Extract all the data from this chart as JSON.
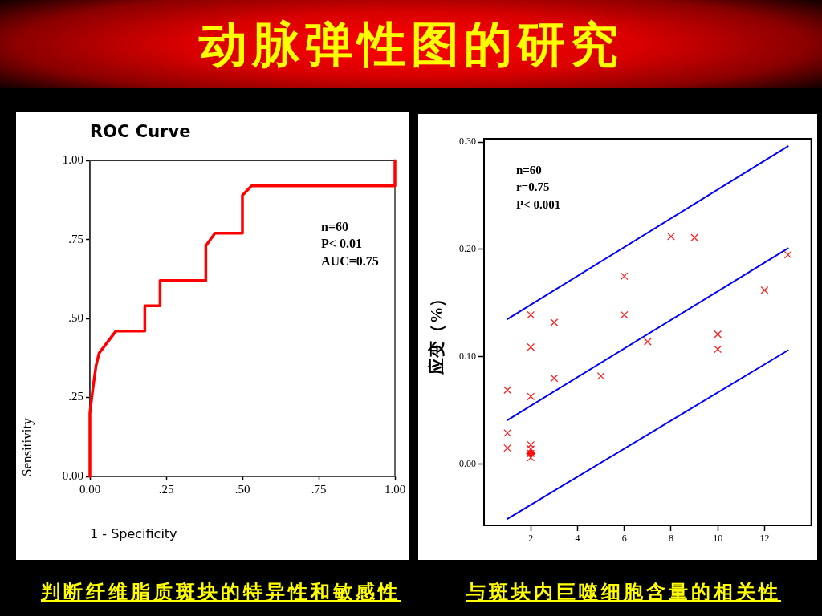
{
  "chart_data": [
    {
      "type": "other",
      "title": "动脉弹性图的研究"
    },
    {
      "type": "line",
      "title": "ROC Curve",
      "xlabel": "1 - Specificity",
      "ylabel": "Sensitivity",
      "x": [
        0,
        0,
        0.01,
        0.02,
        0.03,
        0.085,
        0.18,
        0.18,
        0.23,
        0.23,
        0.38,
        0.38,
        0.41,
        0.5,
        0.5,
        0.53,
        1,
        1
      ],
      "values": [
        0,
        0.2,
        0.28,
        0.35,
        0.39,
        0.46,
        0.46,
        0.54,
        0.54,
        0.62,
        0.62,
        0.73,
        0.77,
        0.77,
        0.89,
        0.92,
        0.92,
        1
      ],
      "color": "#ff0000",
      "marker": "none",
      "xlim": [
        0,
        1
      ],
      "ylim": [
        0,
        1
      ],
      "xticks": [
        {
          "value": 0,
          "label": "0.00"
        },
        {
          "value": 0.25,
          "label": ".25"
        },
        {
          "value": 0.5,
          "label": ".50"
        },
        {
          "value": 0.75,
          "label": ".75"
        },
        {
          "value": 1,
          "label": "1.00"
        }
      ],
      "yticks": [
        {
          "value": 0,
          "label": "0.00"
        },
        {
          "value": 0.25,
          "label": ".25"
        },
        {
          "value": 0.5,
          "label": ".50"
        },
        {
          "value": 0.75,
          "label": ".75"
        },
        {
          "value": 1,
          "label": "1.00"
        }
      ],
      "annotations": [
        "n=60",
        "P< 0.01",
        "AUC=0.75",
        "判断纤维脂质斑块的特异性和敏感性"
      ]
    },
    {
      "type": "scatter",
      "ylabel": "应变（%）",
      "xlim": [
        0,
        14
      ],
      "ylim": [
        -0.057,
        0.303
      ],
      "xticks": [
        2,
        4,
        6,
        8,
        10,
        12
      ],
      "yticks": [
        {
          "value": 0,
          "label": "0.00"
        },
        {
          "value": 0.1,
          "label": "0.10"
        },
        {
          "value": 0.2,
          "label": "0.20"
        },
        {
          "value": 0.3,
          "label": "0.30"
        }
      ],
      "series": [
        {
          "type": "scatter",
          "color": "#ff2020",
          "marker": "cross",
          "x": [
            1,
            1,
            1,
            2,
            2,
            2,
            2,
            2,
            2,
            2,
            3,
            3,
            5,
            6,
            6,
            7,
            8,
            9,
            10,
            10,
            12,
            13
          ],
          "values": [
            0.069,
            0.029,
            0.015,
            0.139,
            0.109,
            0.063,
            0.018,
            0.014,
            0.01,
            0.006,
            0.132,
            0.08,
            0.082,
            0.175,
            0.139,
            0.114,
            0.212,
            0.211,
            0.121,
            0.107,
            0.162,
            0.195
          ]
        },
        {
          "type": "scatter",
          "color": "#ff0000",
          "marker": "diamond",
          "x": [
            2
          ],
          "values": [
            0.01
          ]
        },
        {
          "type": "line",
          "color": "#0000ff",
          "marker": "none",
          "x": [
            1,
            13
          ],
          "values": [
            0.135,
            0.296
          ]
        },
        {
          "type": "line",
          "color": "#0000ff",
          "marker": "none",
          "x": [
            1,
            13
          ],
          "values": [
            0.041,
            0.201
          ]
        },
        {
          "type": "line",
          "color": "#0000ff",
          "marker": "none",
          "x": [
            1,
            13
          ],
          "values": [
            -0.051,
            0.106
          ]
        }
      ],
      "annotations": [
        "n=60",
        "r=0.75",
        "P< 0.001",
        "与斑块内巨噬细胞含量的相关性"
      ]
    }
  ]
}
